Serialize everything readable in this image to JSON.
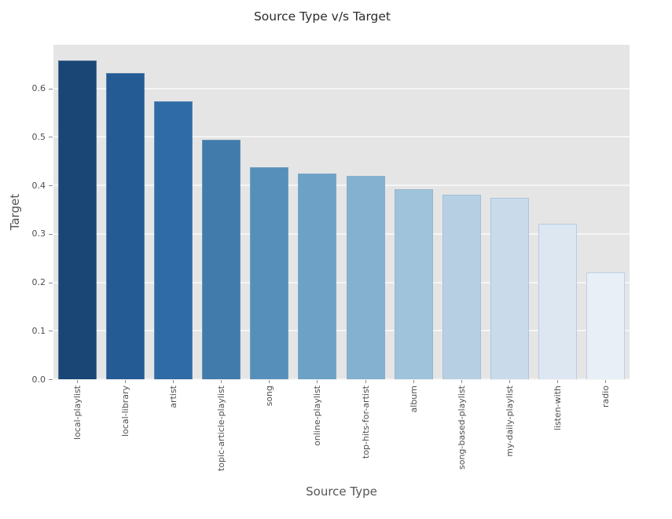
{
  "chart_data": {
    "type": "bar",
    "title": "Source Type v/s Target",
    "xlabel": "Source Type",
    "ylabel": "Target",
    "categories": [
      "local-playlist",
      "local-library",
      "artist",
      "topic-article-playlist",
      "song",
      "online-playlist",
      "top-hits-for-artist",
      "album",
      "song-based-playlist",
      "my-daily-playlist",
      "listen-with",
      "radio"
    ],
    "values": [
      0.657,
      0.631,
      0.573,
      0.494,
      0.437,
      0.425,
      0.419,
      0.392,
      0.38,
      0.374,
      0.321,
      0.22
    ],
    "bar_colors": [
      "#1a4676",
      "#255b94",
      "#2f6ba6",
      "#417bac",
      "#5690ba",
      "#6da2c6",
      "#84b1cf",
      "#9fc3da",
      "#b6cfe3",
      "#c9dbeb",
      "#dce7f2",
      "#e8eff7"
    ],
    "yticks": [
      0.0,
      0.1,
      0.2,
      0.3,
      0.4,
      0.5,
      0.6
    ],
    "ytick_labels": [
      "0.0",
      "0.1",
      "0.2",
      "0.3",
      "0.4",
      "0.5",
      "0.6"
    ],
    "ylim": [
      0,
      0.69
    ],
    "grid": true,
    "grid_axis": "y",
    "legend_position": "none",
    "plot_bg_color": "#e5e5e5",
    "grid_color": "#f5f5f5",
    "tick_text_color": "#4f4f4f",
    "axis_label_color": "#555555",
    "title_color": "#2b2b2b"
  }
}
